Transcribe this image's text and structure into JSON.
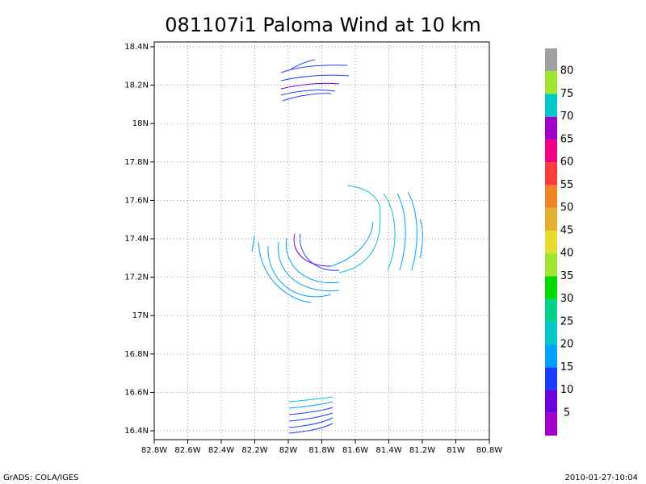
{
  "chart_data": {
    "type": "streamline",
    "title": "081107i1 Paloma Wind at 10 km",
    "xlim": [
      -82.8,
      -80.8
    ],
    "ylim": [
      16.354,
      18.425
    ],
    "xticks": [
      {
        "value": -82.8,
        "label": "82.8W"
      },
      {
        "value": -82.6,
        "label": "82.6W"
      },
      {
        "value": -82.4,
        "label": "82.4W"
      },
      {
        "value": -82.2,
        "label": "82.2W"
      },
      {
        "value": -82.0,
        "label": "82W"
      },
      {
        "value": -81.8,
        "label": "81.8W"
      },
      {
        "value": -81.6,
        "label": "81.6W"
      },
      {
        "value": -81.4,
        "label": "81.4W"
      },
      {
        "value": -81.2,
        "label": "81.2W"
      },
      {
        "value": -81.0,
        "label": "81W"
      },
      {
        "value": -80.8,
        "label": "80.8W"
      }
    ],
    "yticks": [
      {
        "value": 16.4,
        "label": "16.4N"
      },
      {
        "value": 16.6,
        "label": "16.6N"
      },
      {
        "value": 16.8,
        "label": "16.8N"
      },
      {
        "value": 17.0,
        "label": "17N"
      },
      {
        "value": 17.2,
        "label": "17.2N"
      },
      {
        "value": 17.4,
        "label": "17.4N"
      },
      {
        "value": 17.6,
        "label": "17.6N"
      },
      {
        "value": 17.8,
        "label": "17.8N"
      },
      {
        "value": 18.0,
        "label": "18N"
      },
      {
        "value": 18.2,
        "label": "18.2N"
      },
      {
        "value": 18.4,
        "label": "18.4N"
      }
    ],
    "grid": true,
    "colorbar": {
      "levels": [
        5,
        10,
        15,
        20,
        25,
        30,
        35,
        40,
        45,
        50,
        55,
        60,
        65,
        70,
        75,
        80
      ],
      "colors": [
        "#a000c8",
        "#6e00dc",
        "#1e3cff",
        "#00a0ff",
        "#00c8c8",
        "#00d28c",
        "#00dc00",
        "#a0e632",
        "#e6dc32",
        "#e6af2d",
        "#f08228",
        "#fa3c3c",
        "#f00082",
        "#a000c8",
        "#00c8c8",
        "#a0e632",
        "#a0a0a0"
      ]
    }
  },
  "footer": {
    "left": "GrADS: COLA/IGES",
    "right": "2010-01-27-10:04"
  }
}
